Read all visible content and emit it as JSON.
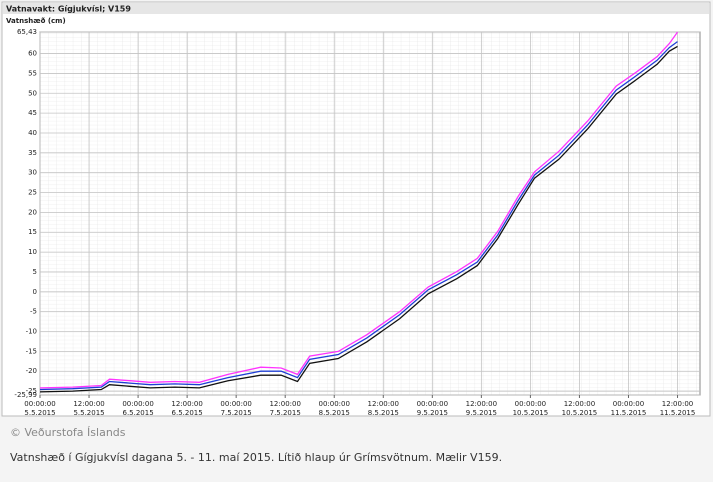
{
  "header": {
    "title": "Vatnavakt: Gígjukvísl; V159"
  },
  "chart_data": {
    "type": "line",
    "ylabel": "Vatnshæð (cm)",
    "x": [
      0,
      8,
      15,
      17,
      22,
      27,
      33,
      39,
      46,
      54,
      59,
      63,
      66,
      73,
      80,
      88,
      95,
      102,
      107,
      112,
      117,
      121,
      127,
      134,
      141,
      146,
      151,
      154,
      156
    ],
    "xlim": [
      0,
      161.5
    ],
    "xticks": [
      {
        "value": 0,
        "label": "00:00:00",
        "date": "5.5.2015"
      },
      {
        "value": 12,
        "label": "12:00:00",
        "date": "5.5.2015"
      },
      {
        "value": 24,
        "label": "00:00:00",
        "date": "6.5.2015"
      },
      {
        "value": 36,
        "label": "12:00:00",
        "date": "6.5.2015"
      },
      {
        "value": 48,
        "label": "00:00:00",
        "date": "7.5.2015"
      },
      {
        "value": 60,
        "label": "12:00:00",
        "date": "7.5.2015"
      },
      {
        "value": 72,
        "label": "00:00:00",
        "date": "8.5.2015"
      },
      {
        "value": 84,
        "label": "12:00:00",
        "date": "8.5.2015"
      },
      {
        "value": 96,
        "label": "00:00:00",
        "date": "9.5.2015"
      },
      {
        "value": 108,
        "label": "12:00:00",
        "date": "9.5.2015"
      },
      {
        "value": 120,
        "label": "00:00:00",
        "date": "10.5.2015"
      },
      {
        "value": 132,
        "label": "12:00:00",
        "date": "10.5.2015"
      },
      {
        "value": 144,
        "label": "00:00:00",
        "date": "11.5.2015"
      },
      {
        "value": 156,
        "label": "12:00:00",
        "date": "11.5.2015"
      }
    ],
    "ylim": [
      -25.99,
      65.43
    ],
    "yticks": [
      {
        "value": 65.43,
        "label": "65,43"
      },
      60,
      55,
      50,
      45,
      40,
      35,
      30,
      25,
      20,
      15,
      10,
      5,
      0,
      -5,
      -10,
      -15,
      -20,
      -25,
      {
        "value": -25.99,
        "label": "-25,99"
      }
    ],
    "grid": true,
    "series": [
      {
        "color": "#ff33ff",
        "values": [
          -24.2,
          -24,
          -23.6,
          -22,
          -22.4,
          -22.8,
          -22.6,
          -22.8,
          -20.8,
          -19,
          -19.2,
          -20.8,
          -16.2,
          -15,
          -10.8,
          -5,
          1.2,
          5.1,
          8.4,
          15.2,
          24,
          30.2,
          35.4,
          43,
          51.8,
          55.4,
          59.2,
          62.5,
          65.4
        ]
      },
      {
        "color": "#1f3fd6",
        "values": [
          -24.6,
          -24.4,
          -24,
          -22.6,
          -23,
          -23.4,
          -23.2,
          -23.4,
          -21.6,
          -20,
          -20,
          -21.6,
          -17,
          -15.8,
          -11.6,
          -5.8,
          0.5,
          4.3,
          7.5,
          14.3,
          23,
          29.4,
          34.4,
          42,
          50.8,
          54.5,
          58.3,
          61.5,
          63
        ]
      },
      {
        "color": "#111111",
        "values": [
          -25.2,
          -25,
          -24.6,
          -23.4,
          -23.8,
          -24.2,
          -24,
          -24.2,
          -22.4,
          -21,
          -21,
          -22.6,
          -18,
          -16.8,
          -12.6,
          -6.8,
          -0.5,
          3.3,
          6.6,
          13.4,
          22,
          28.6,
          33.4,
          41,
          49.8,
          53.5,
          57.3,
          60.6,
          61.8
        ]
      }
    ]
  },
  "footer": {
    "credit": "© Veðurstofa Íslands",
    "caption": "Vatnshæð í Gígjukvísl dagana 5. - 11. maí 2015. Lítið hlaup úr Grímsvötnum. Mælir V159."
  }
}
